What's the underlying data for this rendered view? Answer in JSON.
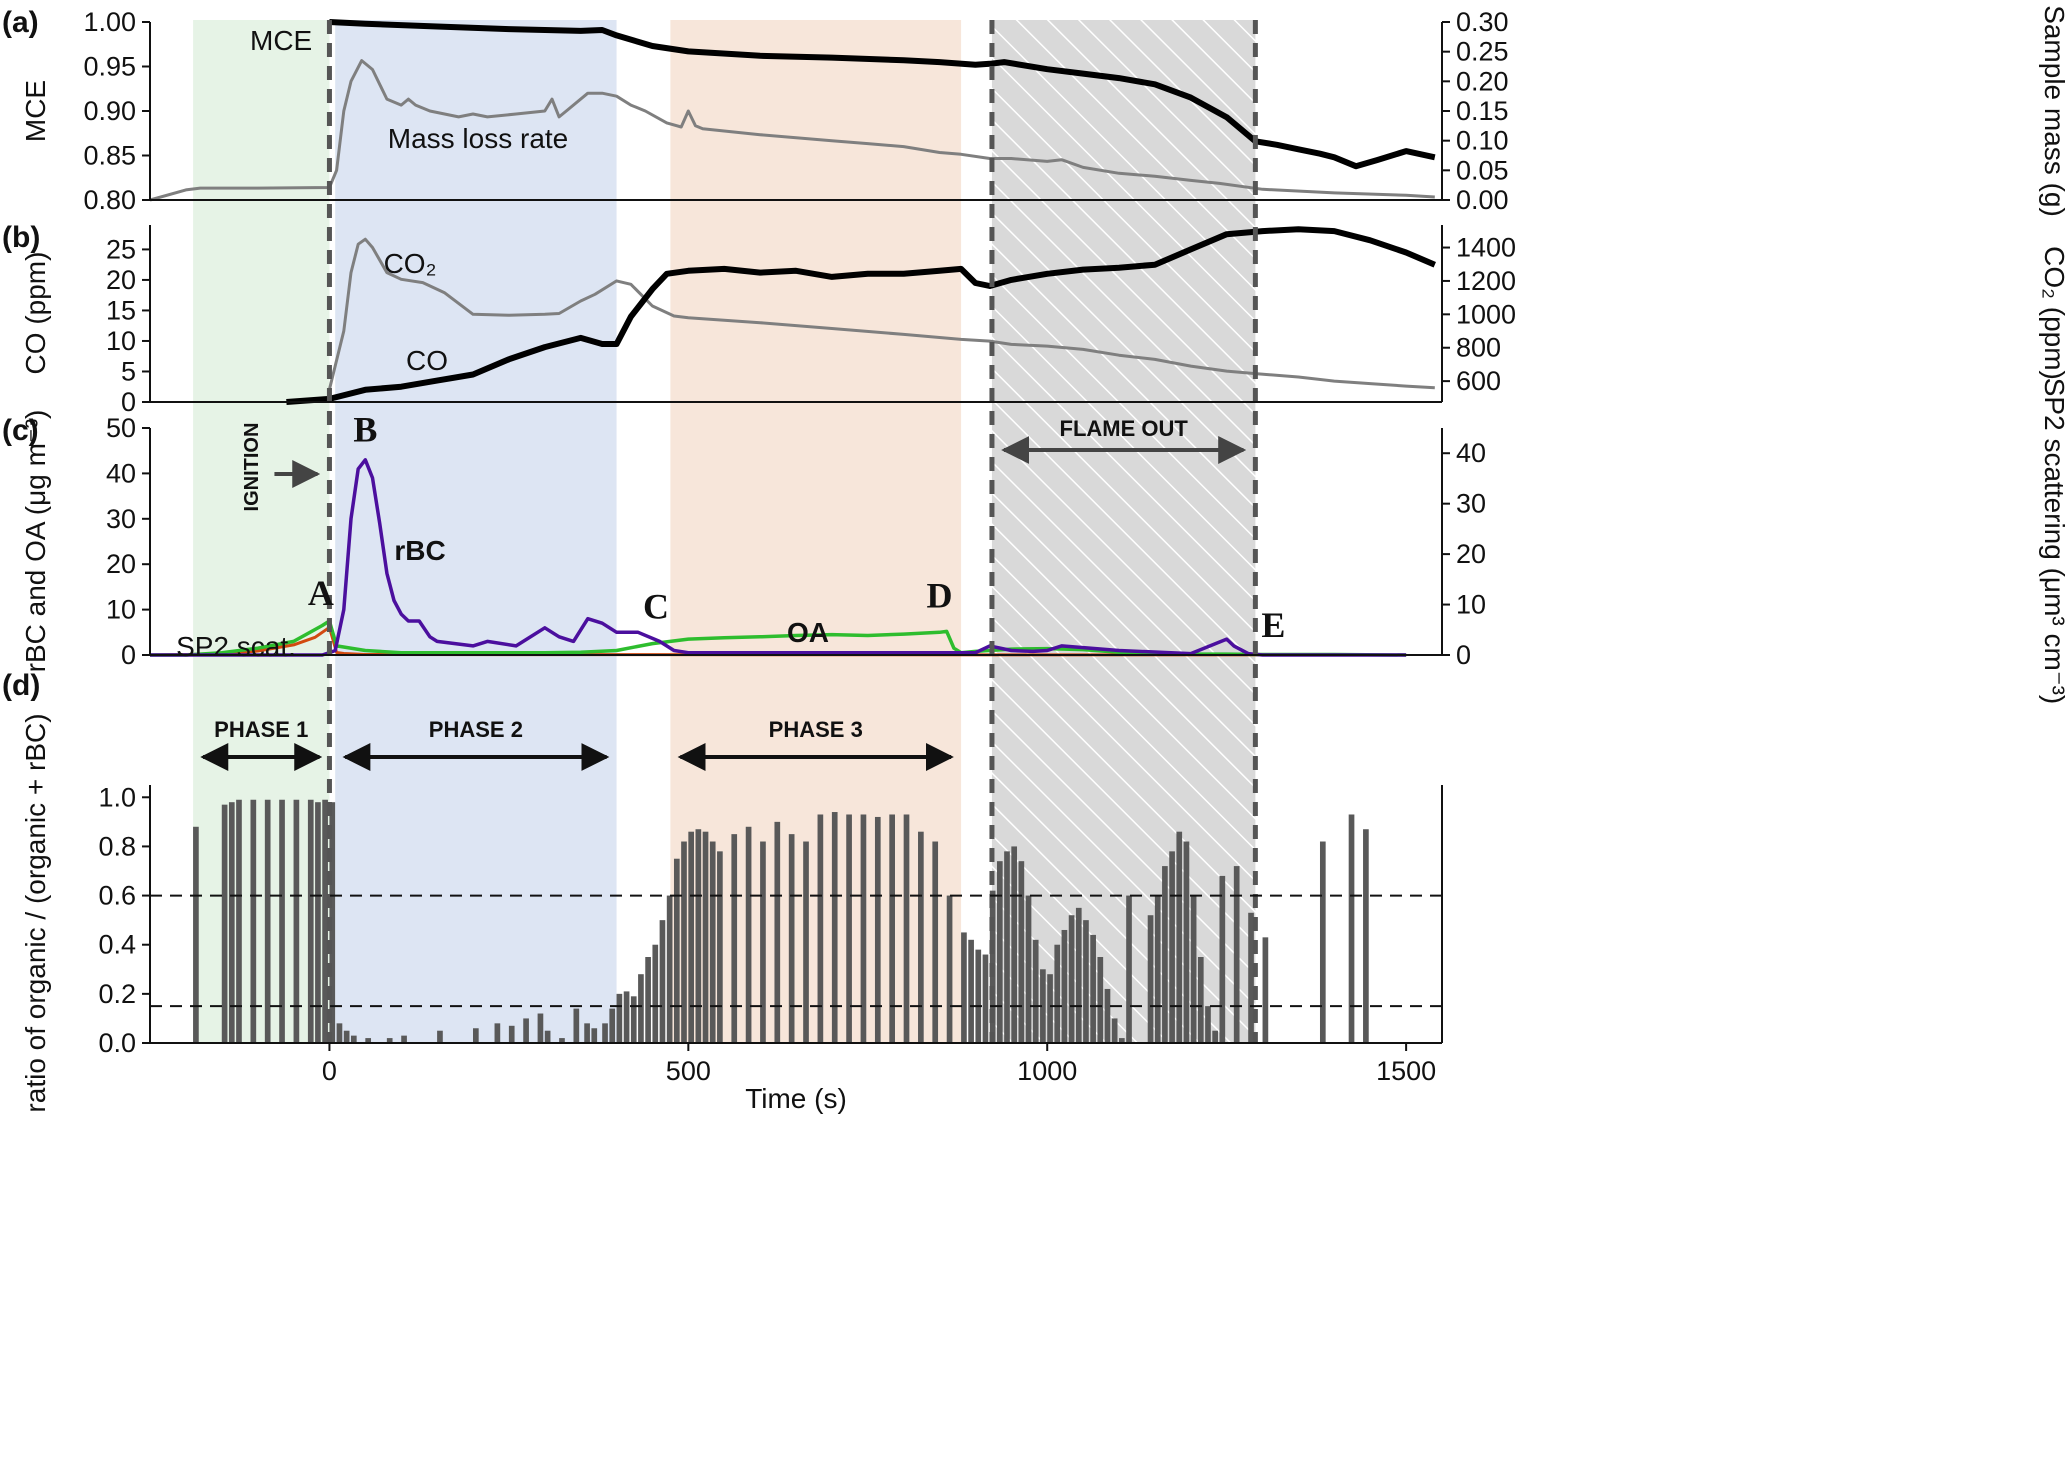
{
  "figure": {
    "panel_letters": [
      "(a)",
      "(b)",
      "(c)",
      "(d)"
    ],
    "x_axis_label": "Time (s)",
    "x_ticks": [
      0,
      500,
      1000,
      1500
    ],
    "colors": {
      "green_shade": "#e6f3e6",
      "blue_shade": "#dde5f3",
      "orange_shade": "#f7e6da",
      "hatch_shade": "#d9d9d9",
      "rbc": "#4b0f9e",
      "oa": "#2ebd2e",
      "sp2": "#d24a10",
      "gray_line": "#7f7f7f",
      "bars": "#595959"
    },
    "phases": [
      {
        "label": "PHASE 1",
        "start": -190,
        "end": 0
      },
      {
        "label": "PHASE 2",
        "start": 8,
        "end": 400
      },
      {
        "label": "PHASE 3",
        "start": 475,
        "end": 880
      }
    ],
    "flame_out": {
      "label": "FLAME OUT",
      "start": 923,
      "end": 1290
    },
    "ignition": {
      "label": "IGNITION",
      "time": 0
    },
    "points": [
      {
        "label": "A",
        "x": -12,
        "y": 11
      },
      {
        "label": "B",
        "x": 50,
        "y": 47
      },
      {
        "label": "C",
        "x": 455,
        "y": 8
      },
      {
        "label": "D",
        "x": 850,
        "y": 10.5
      },
      {
        "label": "E",
        "x": 1315,
        "y": 4
      }
    ]
  },
  "chart_data": [
    {
      "panel": "(a)",
      "type": "line",
      "ylabel": "MCE",
      "ylabel_right": "Sample mass (g)",
      "xlim": [
        -250,
        1550
      ],
      "ylim": [
        0.8,
        1.0
      ],
      "ylim_right": [
        0.0,
        0.3
      ],
      "yticks": [
        "1.00",
        "0.95",
        "0.90",
        "0.85",
        "0.80"
      ],
      "yticks_right": [
        "0.30",
        "0.25",
        "0.20",
        "0.15",
        "0.10",
        "0.05",
        "0.00"
      ],
      "series": [
        {
          "name": "MCE",
          "axis": "left",
          "x": [
            0,
            50,
            150,
            250,
            350,
            380,
            400,
            450,
            500,
            600,
            700,
            800,
            850,
            900,
            920,
            940,
            1000,
            1050,
            1100,
            1150,
            1200,
            1250,
            1290,
            1320,
            1350,
            1380,
            1400,
            1430,
            1460,
            1500,
            1540
          ],
          "y": [
            1.0,
            0.998,
            0.995,
            0.992,
            0.99,
            0.991,
            0.985,
            0.973,
            0.967,
            0.962,
            0.96,
            0.957,
            0.955,
            0.952,
            0.953,
            0.955,
            0.947,
            0.942,
            0.937,
            0.93,
            0.915,
            0.893,
            0.866,
            0.862,
            0.857,
            0.852,
            0.848,
            0.838,
            0.845,
            0.855,
            0.848
          ]
        },
        {
          "name": "Mass loss rate",
          "axis": "right",
          "x": [
            -250,
            -200,
            -180,
            -100,
            0,
            10,
            20,
            30,
            45,
            60,
            80,
            100,
            110,
            120,
            140,
            180,
            200,
            220,
            260,
            300,
            310,
            320,
            330,
            360,
            380,
            400,
            420,
            440,
            470,
            490,
            500,
            510,
            520,
            600,
            700,
            750,
            800,
            850,
            880,
            920,
            950,
            1000,
            1020,
            1050,
            1100,
            1150,
            1200,
            1240,
            1300,
            1400,
            1500,
            1540
          ],
          "y": [
            0.0,
            0.017,
            0.02,
            0.02,
            0.021,
            0.05,
            0.15,
            0.2,
            0.235,
            0.22,
            0.17,
            0.16,
            0.17,
            0.16,
            0.15,
            0.14,
            0.145,
            0.14,
            0.145,
            0.15,
            0.17,
            0.14,
            0.15,
            0.18,
            0.18,
            0.175,
            0.16,
            0.15,
            0.13,
            0.123,
            0.15,
            0.125,
            0.12,
            0.11,
            0.1,
            0.095,
            0.09,
            0.08,
            0.077,
            0.07,
            0.07,
            0.065,
            0.068,
            0.055,
            0.045,
            0.04,
            0.033,
            0.028,
            0.018,
            0.012,
            0.008,
            0.005
          ]
        }
      ]
    },
    {
      "panel": "(b)",
      "type": "line",
      "ylabel": "CO (ppm)",
      "ylabel_right": "CO₂ (ppm)",
      "xlim": [
        -250,
        1550
      ],
      "ylim": [
        0,
        29
      ],
      "ylim_right": [
        475,
        1535
      ],
      "yticks": [
        "25",
        "20",
        "15",
        "10",
        "5",
        "0"
      ],
      "yticks_right": [
        "1400",
        "1200",
        "1000",
        "800",
        "600"
      ],
      "series": [
        {
          "name": "CO",
          "axis": "left",
          "x": [
            -60,
            0,
            50,
            100,
            150,
            200,
            250,
            300,
            350,
            380,
            400,
            420,
            450,
            470,
            500,
            550,
            600,
            650,
            700,
            750,
            800,
            850,
            880,
            900,
            920,
            950,
            1000,
            1050,
            1100,
            1150,
            1200,
            1250,
            1300,
            1350,
            1400,
            1450,
            1500,
            1540
          ],
          "y": [
            0,
            0.5,
            2,
            2.5,
            3.5,
            4.5,
            7,
            9,
            10.5,
            9.5,
            9.5,
            14,
            18.5,
            21,
            21.5,
            21.8,
            21.2,
            21.5,
            20.5,
            21,
            21,
            21.5,
            21.8,
            19.5,
            19,
            20,
            21,
            21.7,
            22,
            22.5,
            25,
            27.5,
            28,
            28.3,
            28,
            26.5,
            24.5,
            22.5
          ]
        },
        {
          "name": "CO₂",
          "axis": "right",
          "x": [
            0,
            20,
            30,
            40,
            50,
            60,
            80,
            100,
            130,
            160,
            200,
            250,
            300,
            320,
            350,
            370,
            400,
            420,
            450,
            480,
            500,
            600,
            700,
            800,
            880,
            920,
            950,
            1000,
            1050,
            1100,
            1150,
            1200,
            1250,
            1290,
            1350,
            1400,
            1450,
            1500,
            1540
          ],
          "y": [
            550,
            900,
            1250,
            1420,
            1450,
            1400,
            1250,
            1210,
            1190,
            1130,
            1000,
            995,
            1000,
            1005,
            1080,
            1120,
            1200,
            1180,
            1050,
            990,
            980,
            950,
            915,
            880,
            850,
            840,
            820,
            810,
            790,
            755,
            730,
            690,
            660,
            645,
            625,
            600,
            585,
            570,
            560
          ]
        }
      ]
    },
    {
      "panel": "(c)",
      "type": "line",
      "ylabel": "rBC and OA (μg m⁻³)",
      "ylabel_right": "SP2 scattering (μm³ cm⁻³)",
      "xlim": [
        -250,
        1550
      ],
      "ylim": [
        0,
        50
      ],
      "ylim_right": [
        0,
        45
      ],
      "yticks": [
        "50",
        "40",
        "30",
        "20",
        "10",
        "0"
      ],
      "yticks_right": [
        "40",
        "30",
        "20",
        "10",
        "0"
      ],
      "series": [
        {
          "name": "rBC",
          "axis": "left",
          "x": [
            -250,
            -10,
            0,
            8,
            20,
            30,
            40,
            50,
            60,
            70,
            80,
            90,
            100,
            110,
            125,
            140,
            150,
            200,
            220,
            260,
            300,
            320,
            340,
            360,
            380,
            400,
            430,
            460,
            480,
            500,
            600,
            700,
            800,
            900,
            920,
            950,
            980,
            1000,
            1020,
            1100,
            1200,
            1250,
            1260,
            1280,
            1300,
            1500
          ],
          "y": [
            0,
            0,
            0.5,
            1,
            10,
            30,
            41,
            43,
            39,
            29,
            18,
            12,
            9,
            7.5,
            7.5,
            4,
            3,
            2,
            3,
            2,
            6,
            4,
            3,
            8,
            7,
            5,
            5,
            3,
            1,
            0.5,
            0.5,
            0.5,
            0.5,
            0.5,
            2,
            1,
            0.8,
            1,
            2,
            1,
            0.3,
            3.5,
            2,
            0.3,
            0,
            0
          ]
        },
        {
          "name": "OA",
          "axis": "left",
          "x": [
            -250,
            -200,
            -150,
            -100,
            -50,
            -10,
            0,
            10,
            50,
            100,
            200,
            300,
            350,
            400,
            450,
            500,
            550,
            600,
            650,
            700,
            750,
            800,
            850,
            860,
            870,
            880,
            900,
            950,
            1000,
            1050,
            1100,
            1150,
            1200,
            1250,
            1300,
            1400,
            1500
          ],
          "y": [
            0,
            0,
            0.5,
            1.5,
            3,
            6.5,
            7.5,
            2,
            1,
            0.5,
            0.5,
            0.5,
            0.6,
            1,
            2.5,
            3.5,
            3.8,
            4,
            4.3,
            4.5,
            4.3,
            4.6,
            5,
            5.2,
            1.5,
            0.5,
            0.8,
            1.3,
            1.4,
            1.2,
            0.6,
            0.4,
            0.2,
            0.2,
            0.1,
            0.1,
            0
          ]
        },
        {
          "name": "SP2 scat.",
          "axis": "right",
          "x": [
            -250,
            -150,
            -100,
            -50,
            -20,
            -5,
            0,
            5,
            10,
            20,
            50,
            1500
          ],
          "y": [
            0,
            0.2,
            0.8,
            2,
            3.5,
            5,
            5.5,
            3,
            0.5,
            0.3,
            0.1,
            0
          ]
        }
      ]
    },
    {
      "panel": "(d)",
      "type": "bar",
      "ylabel": "ratio of organic / (organic + rBC)",
      "xlabel": "Time (s)",
      "xlim": [
        -250,
        1550
      ],
      "ylim": [
        0,
        1.05
      ],
      "yticks": [
        "1.0",
        "0.8",
        "0.6",
        "0.4",
        "0.2",
        "0.0"
      ],
      "reference_lines": [
        0.6,
        0.15
      ],
      "x": [
        -190,
        -150,
        -140,
        -130,
        -110,
        -90,
        -70,
        -50,
        -30,
        -20,
        -10,
        0,
        10,
        20,
        30,
        50,
        80,
        100,
        150,
        200,
        230,
        250,
        270,
        290,
        300,
        320,
        340,
        355,
        365,
        380,
        390,
        400,
        410,
        420,
        430,
        440,
        450,
        460,
        470,
        480,
        490,
        500,
        510,
        520,
        530,
        540,
        560,
        580,
        600,
        620,
        640,
        660,
        680,
        700,
        720,
        740,
        760,
        780,
        800,
        820,
        840,
        860,
        880,
        890,
        900,
        910,
        920,
        930,
        940,
        950,
        960,
        970,
        980,
        990,
        1000,
        1010,
        1020,
        1030,
        1040,
        1050,
        1060,
        1070,
        1080,
        1090,
        1100,
        1110,
        1140,
        1150,
        1160,
        1170,
        1180,
        1190,
        1200,
        1210,
        1220,
        1230,
        1240,
        1260,
        1280,
        1300,
        1380,
        1420,
        1440
      ],
      "values": [
        0.88,
        0.97,
        0.98,
        0.99,
        0.99,
        0.99,
        0.99,
        0.99,
        0.99,
        0.98,
        0.99,
        0.98,
        0.08,
        0.05,
        0.03,
        0.02,
        0.02,
        0.03,
        0.05,
        0.06,
        0.08,
        0.07,
        0.1,
        0.12,
        0.05,
        0.02,
        0.14,
        0.08,
        0.06,
        0.08,
        0.14,
        0.2,
        0.21,
        0.19,
        0.28,
        0.35,
        0.4,
        0.5,
        0.6,
        0.75,
        0.82,
        0.86,
        0.87,
        0.86,
        0.82,
        0.78,
        0.85,
        0.88,
        0.82,
        0.9,
        0.85,
        0.82,
        0.93,
        0.94,
        0.93,
        0.93,
        0.92,
        0.93,
        0.93,
        0.86,
        0.82,
        0.6,
        0.45,
        0.42,
        0.38,
        0.36,
        0.62,
        0.74,
        0.78,
        0.8,
        0.74,
        0.6,
        0.42,
        0.3,
        0.28,
        0.4,
        0.46,
        0.52,
        0.55,
        0.5,
        0.44,
        0.35,
        0.22,
        0.1,
        0.02,
        0.6,
        0.52,
        0.6,
        0.72,
        0.78,
        0.86,
        0.82,
        0.6,
        0.35,
        0.15,
        0.05,
        0.68,
        0.72,
        0.53,
        0.43,
        0.82,
        0.93,
        0.87
      ]
    }
  ]
}
